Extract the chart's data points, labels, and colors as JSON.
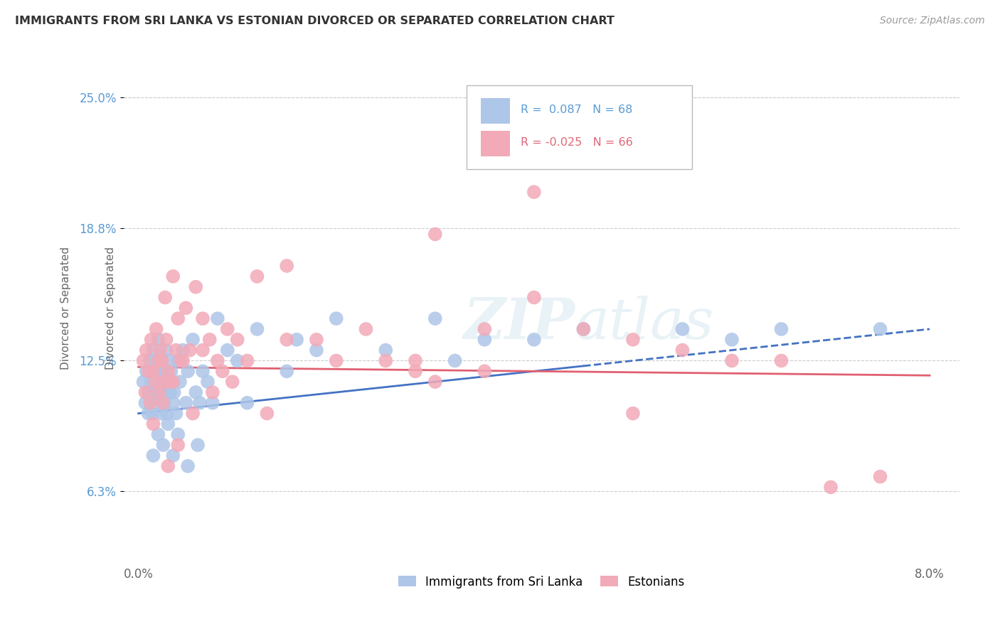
{
  "title": "IMMIGRANTS FROM SRI LANKA VS ESTONIAN DIVORCED OR SEPARATED CORRELATION CHART",
  "source_text": "Source: ZipAtlas.com",
  "ylabel": "Divorced or Separated",
  "watermark": "ZIPAtlas",
  "color_blue": "#aec6e8",
  "color_pink": "#f2aab8",
  "color_blue_line": "#4472c4",
  "color_pink_line": "#e06070",
  "color_blue_text": "#5b9bd5",
  "color_pink_text": "#e06878",
  "legend_r1": "R =  0.087",
  "legend_n1": "N = 68",
  "legend_r2": "R = -0.025",
  "legend_n2": "N = 66",
  "blue_x": [
    0.05,
    0.07,
    0.08,
    0.1,
    0.1,
    0.12,
    0.13,
    0.14,
    0.15,
    0.16,
    0.17,
    0.18,
    0.19,
    0.2,
    0.21,
    0.22,
    0.23,
    0.24,
    0.25,
    0.26,
    0.27,
    0.28,
    0.29,
    0.3,
    0.31,
    0.32,
    0.33,
    0.35,
    0.36,
    0.38,
    0.4,
    0.42,
    0.45,
    0.48,
    0.5,
    0.55,
    0.58,
    0.62,
    0.65,
    0.7,
    0.75,
    0.8,
    0.9,
    1.0,
    1.1,
    1.2,
    1.5,
    1.6,
    1.8,
    2.0,
    2.5,
    3.0,
    3.2,
    3.5,
    4.0,
    4.5,
    5.5,
    6.0,
    6.5,
    7.5,
    0.15,
    0.2,
    0.25,
    0.3,
    0.35,
    0.4,
    0.5,
    0.6
  ],
  "blue_y": [
    11.5,
    10.5,
    12.0,
    11.0,
    10.0,
    12.5,
    11.5,
    10.0,
    13.0,
    12.0,
    11.0,
    12.5,
    10.5,
    13.5,
    11.0,
    12.0,
    10.0,
    11.5,
    12.0,
    10.5,
    11.0,
    13.0,
    10.0,
    11.5,
    12.5,
    11.0,
    12.0,
    10.5,
    11.0,
    10.0,
    12.5,
    11.5,
    13.0,
    10.5,
    12.0,
    13.5,
    11.0,
    10.5,
    12.0,
    11.5,
    10.5,
    14.5,
    13.0,
    12.5,
    10.5,
    14.0,
    12.0,
    13.5,
    13.0,
    14.5,
    13.0,
    14.5,
    12.5,
    13.5,
    13.5,
    14.0,
    14.0,
    13.5,
    14.0,
    14.0,
    8.0,
    9.0,
    8.5,
    9.5,
    8.0,
    9.0,
    7.5,
    8.5
  ],
  "pink_x": [
    0.05,
    0.07,
    0.08,
    0.1,
    0.12,
    0.13,
    0.15,
    0.17,
    0.18,
    0.2,
    0.21,
    0.22,
    0.24,
    0.25,
    0.27,
    0.28,
    0.3,
    0.32,
    0.35,
    0.38,
    0.4,
    0.43,
    0.48,
    0.52,
    0.58,
    0.65,
    0.72,
    0.8,
    0.9,
    1.0,
    1.2,
    1.5,
    1.8,
    2.0,
    2.3,
    2.8,
    3.0,
    3.5,
    4.0,
    4.5,
    5.0,
    5.5,
    6.0,
    6.5,
    7.0,
    7.5,
    0.15,
    0.25,
    0.35,
    0.45,
    0.55,
    0.65,
    0.75,
    0.85,
    0.95,
    1.1,
    1.3,
    1.5,
    2.5,
    3.5,
    4.0,
    5.0,
    3.0,
    2.8,
    0.3,
    0.4
  ],
  "pink_y": [
    12.5,
    11.0,
    13.0,
    12.0,
    10.5,
    13.5,
    12.0,
    11.5,
    14.0,
    12.5,
    11.0,
    13.0,
    12.5,
    11.5,
    15.5,
    13.5,
    12.0,
    11.5,
    16.5,
    13.0,
    14.5,
    12.5,
    15.0,
    13.0,
    16.0,
    14.5,
    13.5,
    12.5,
    14.0,
    13.5,
    16.5,
    17.0,
    13.5,
    12.5,
    14.0,
    12.5,
    18.5,
    14.0,
    20.5,
    14.0,
    13.5,
    13.0,
    12.5,
    12.5,
    6.5,
    7.0,
    9.5,
    10.5,
    11.5,
    12.5,
    10.0,
    13.0,
    11.0,
    12.0,
    11.5,
    12.5,
    10.0,
    13.5,
    12.5,
    12.0,
    15.5,
    10.0,
    11.5,
    12.0,
    7.5,
    8.5
  ]
}
